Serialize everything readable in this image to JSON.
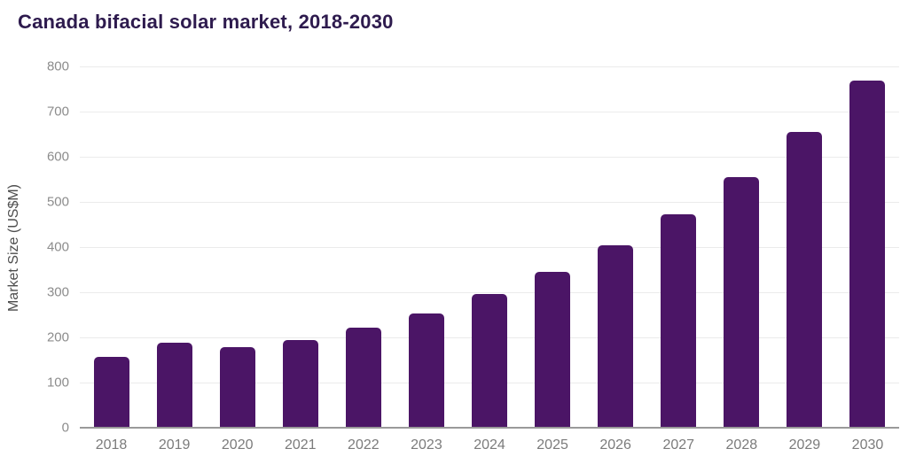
{
  "title": "Canada bifacial solar market, 2018-2030",
  "chart_data": {
    "type": "bar",
    "title": "Canada bifacial solar market, 2018-2030",
    "categories": [
      "2018",
      "2019",
      "2020",
      "2021",
      "2022",
      "2023",
      "2024",
      "2025",
      "2026",
      "2027",
      "2028",
      "2029",
      "2030"
    ],
    "values": [
      157,
      188,
      179,
      194,
      222,
      253,
      296,
      345,
      404,
      472,
      555,
      654,
      769
    ],
    "xlabel": "",
    "ylabel": "Market Size (US$M)",
    "ylim": [
      0,
      800
    ],
    "ytick_step": 100,
    "yticks": [
      0,
      100,
      200,
      300,
      400,
      500,
      600,
      700,
      800
    ],
    "grid": true,
    "legend": "none",
    "colors": {
      "bar": "#4b1566",
      "title": "#2e1b4e",
      "tick_label": "#8c8c8c",
      "x_tick_label": "#7b7b7b",
      "axis_line": "#9a9a9a",
      "gridline": "#ebebeb",
      "background": "#ffffff"
    }
  }
}
